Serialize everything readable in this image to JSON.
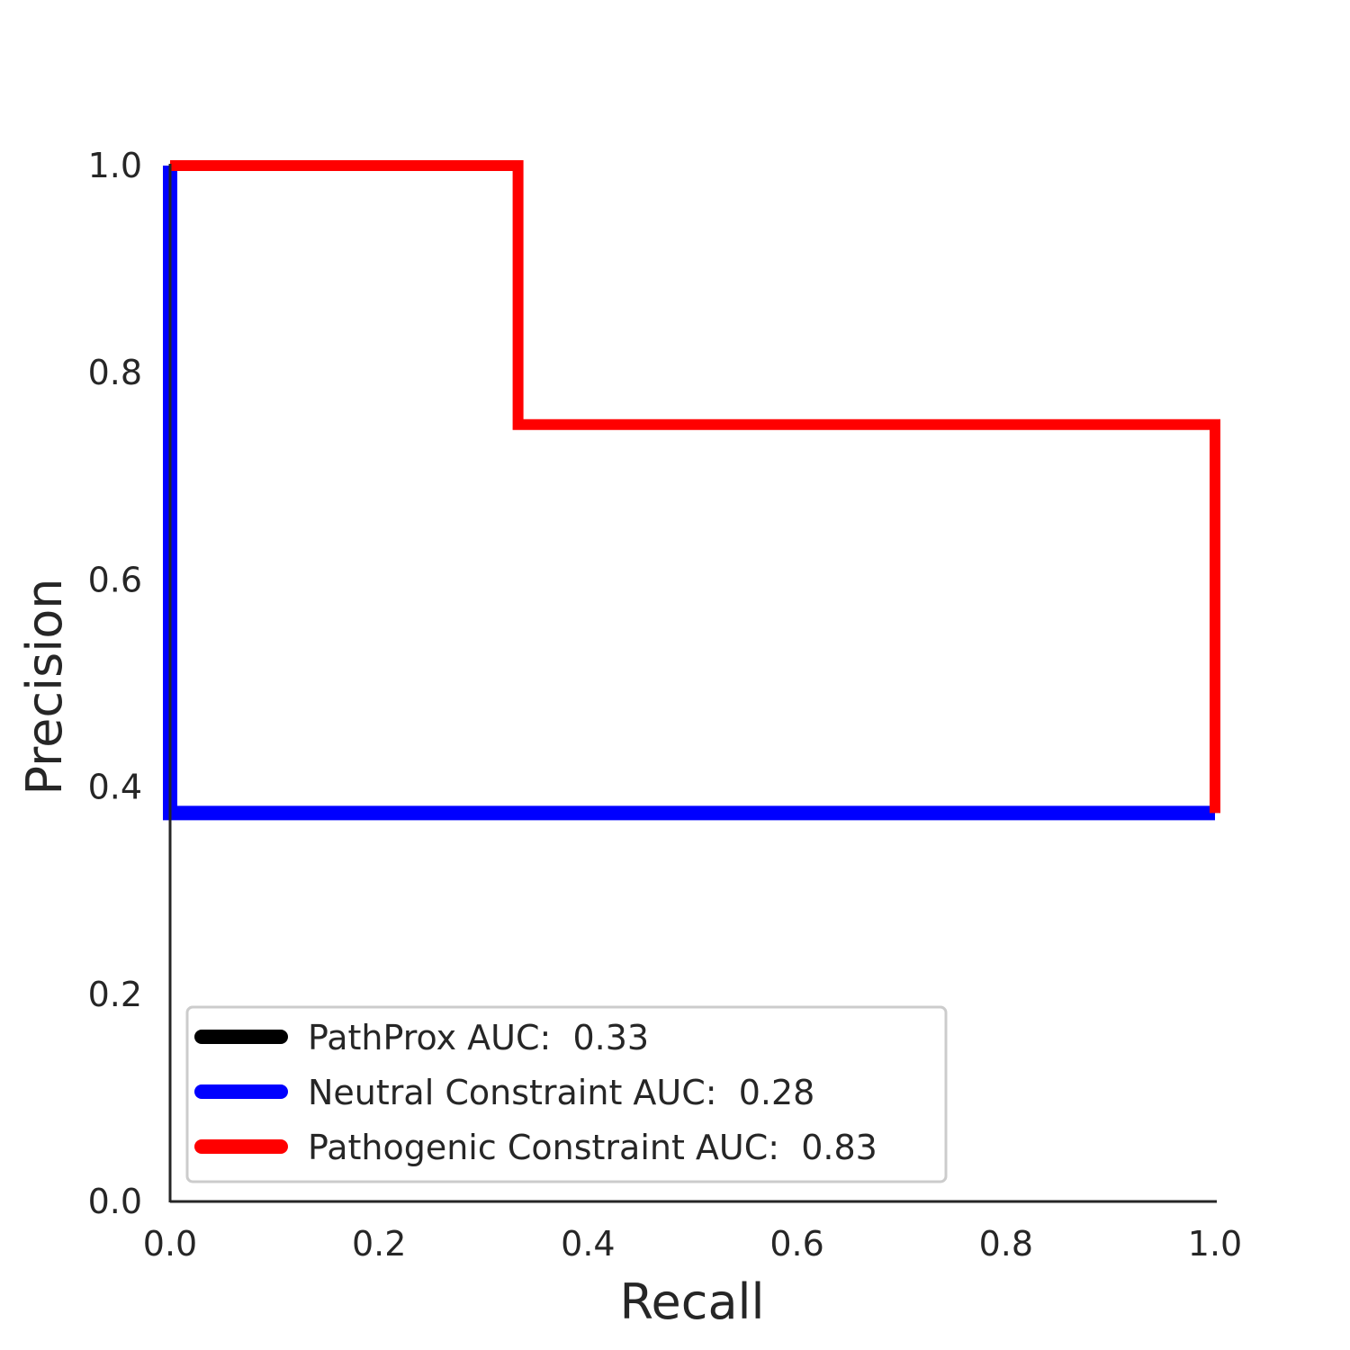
{
  "chart_data": {
    "type": "line",
    "xlabel": "Recall",
    "ylabel": "Precision",
    "xlim": [
      0.0,
      1.0
    ],
    "ylim": [
      0.0,
      1.0
    ],
    "xticks": [
      "0.0",
      "0.2",
      "0.4",
      "0.6",
      "0.8",
      "1.0"
    ],
    "yticks": [
      "0.0",
      "0.2",
      "0.4",
      "0.6",
      "0.8",
      "1.0"
    ],
    "grid": false,
    "legend_position": "lower-left",
    "series": [
      {
        "name": "PathProx AUC:  0.33",
        "color": "#000000",
        "x": [
          1.0,
          1.0
        ],
        "y": [
          0.375,
          0.375
        ]
      },
      {
        "name": "Neutral Constraint AUC:  0.28",
        "color": "#0000ff",
        "x": [
          0.0,
          0.0,
          1.0
        ],
        "y": [
          1.0,
          0.375,
          0.375
        ]
      },
      {
        "name": "Pathogenic Constraint AUC:  0.83",
        "color": "#ff0000",
        "x": [
          0.0,
          0.333,
          0.333,
          1.0,
          1.0
        ],
        "y": [
          1.0,
          1.0,
          0.75,
          0.75,
          0.375
        ]
      }
    ]
  }
}
